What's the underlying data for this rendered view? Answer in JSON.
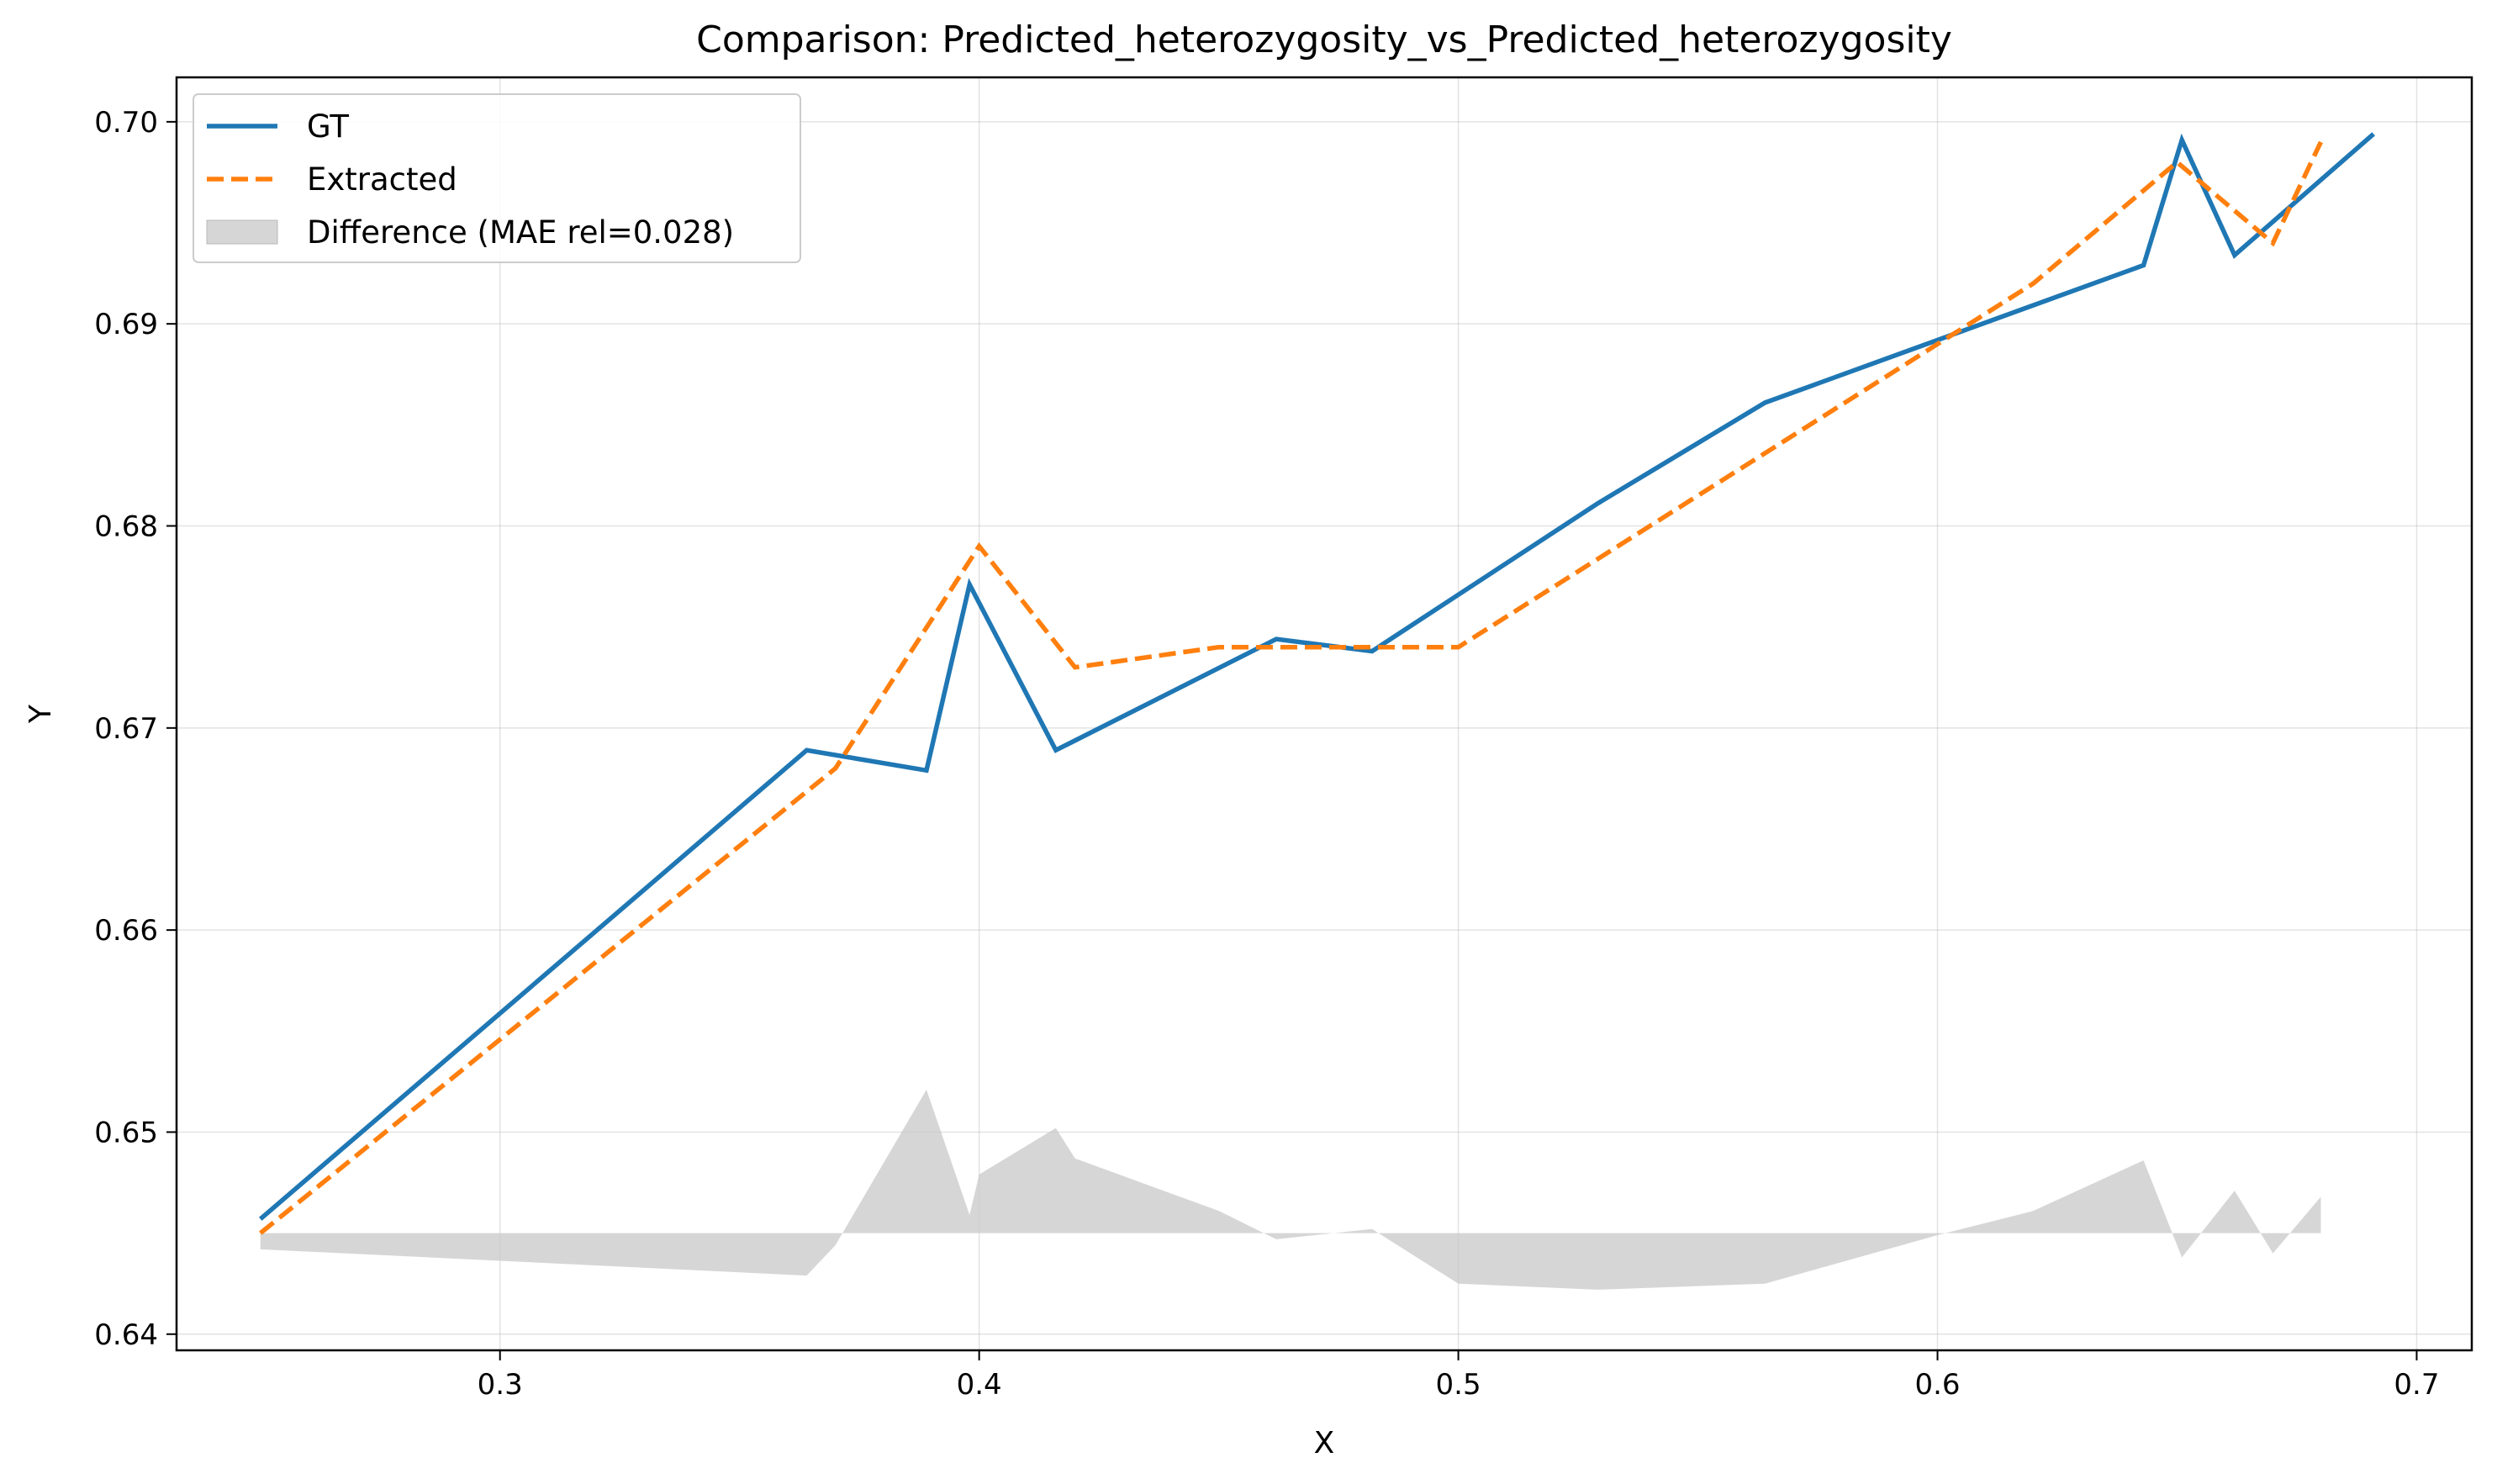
{
  "chart_data": {
    "type": "line",
    "title": "Comparison: Predicted_heterozygosity_vs_Predicted_heterozygosity",
    "xlabel": "X",
    "ylabel": "Y",
    "xlim": [
      0.2325,
      0.7115
    ],
    "ylim": [
      0.6392,
      0.7022
    ],
    "xticks": [
      0.3,
      0.4,
      0.5,
      0.6,
      0.7
    ],
    "xtick_labels": [
      "0.3",
      "0.4",
      "0.5",
      "0.6",
      "0.7"
    ],
    "yticks": [
      0.64,
      0.65,
      0.66,
      0.67,
      0.68,
      0.69,
      0.7
    ],
    "ytick_labels": [
      "0.64",
      "0.65",
      "0.66",
      "0.67",
      "0.68",
      "0.69",
      "0.70"
    ],
    "grid": true,
    "legend_position": "top-left",
    "series": [
      {
        "name": "GT",
        "color": "#1f77b4",
        "style": "solid",
        "x": [
          0.25,
          0.364,
          0.389,
          0.398,
          0.416,
          0.462,
          0.482,
          0.529,
          0.564,
          0.643,
          0.651,
          0.662,
          0.691
        ],
        "y": [
          0.6457,
          0.6689,
          0.6679,
          0.6771,
          0.6689,
          0.6744,
          0.6738,
          0.6811,
          0.6861,
          0.6929,
          0.6991,
          0.6934,
          0.6994
        ]
      },
      {
        "name": "Extracted",
        "color": "#ff7f0e",
        "style": "dashed",
        "x": [
          0.25,
          0.37,
          0.4,
          0.42,
          0.45,
          0.5,
          0.6,
          0.62,
          0.65,
          0.67,
          0.68
        ],
        "y": [
          0.645,
          0.668,
          0.679,
          0.673,
          0.674,
          0.674,
          0.689,
          0.692,
          0.698,
          0.694,
          0.699
        ]
      },
      {
        "name": "Difference (MAE rel=0.028)",
        "color": "#c8c8c8",
        "style": "fill",
        "baseline": 0.645,
        "x": [
          0.25,
          0.364,
          0.37,
          0.389,
          0.398,
          0.4,
          0.416,
          0.42,
          0.45,
          0.462,
          0.482,
          0.5,
          0.529,
          0.564,
          0.6,
          0.62,
          0.643,
          0.651,
          0.662,
          0.67,
          0.68
        ],
        "y": [
          0.6442,
          0.6429,
          0.6444,
          0.6521,
          0.6459,
          0.6479,
          0.6502,
          0.6487,
          0.6461,
          0.6447,
          0.6452,
          0.6425,
          0.6422,
          0.6425,
          0.6449,
          0.6461,
          0.6486,
          0.6438,
          0.6471,
          0.644,
          0.6468
        ]
      }
    ]
  }
}
